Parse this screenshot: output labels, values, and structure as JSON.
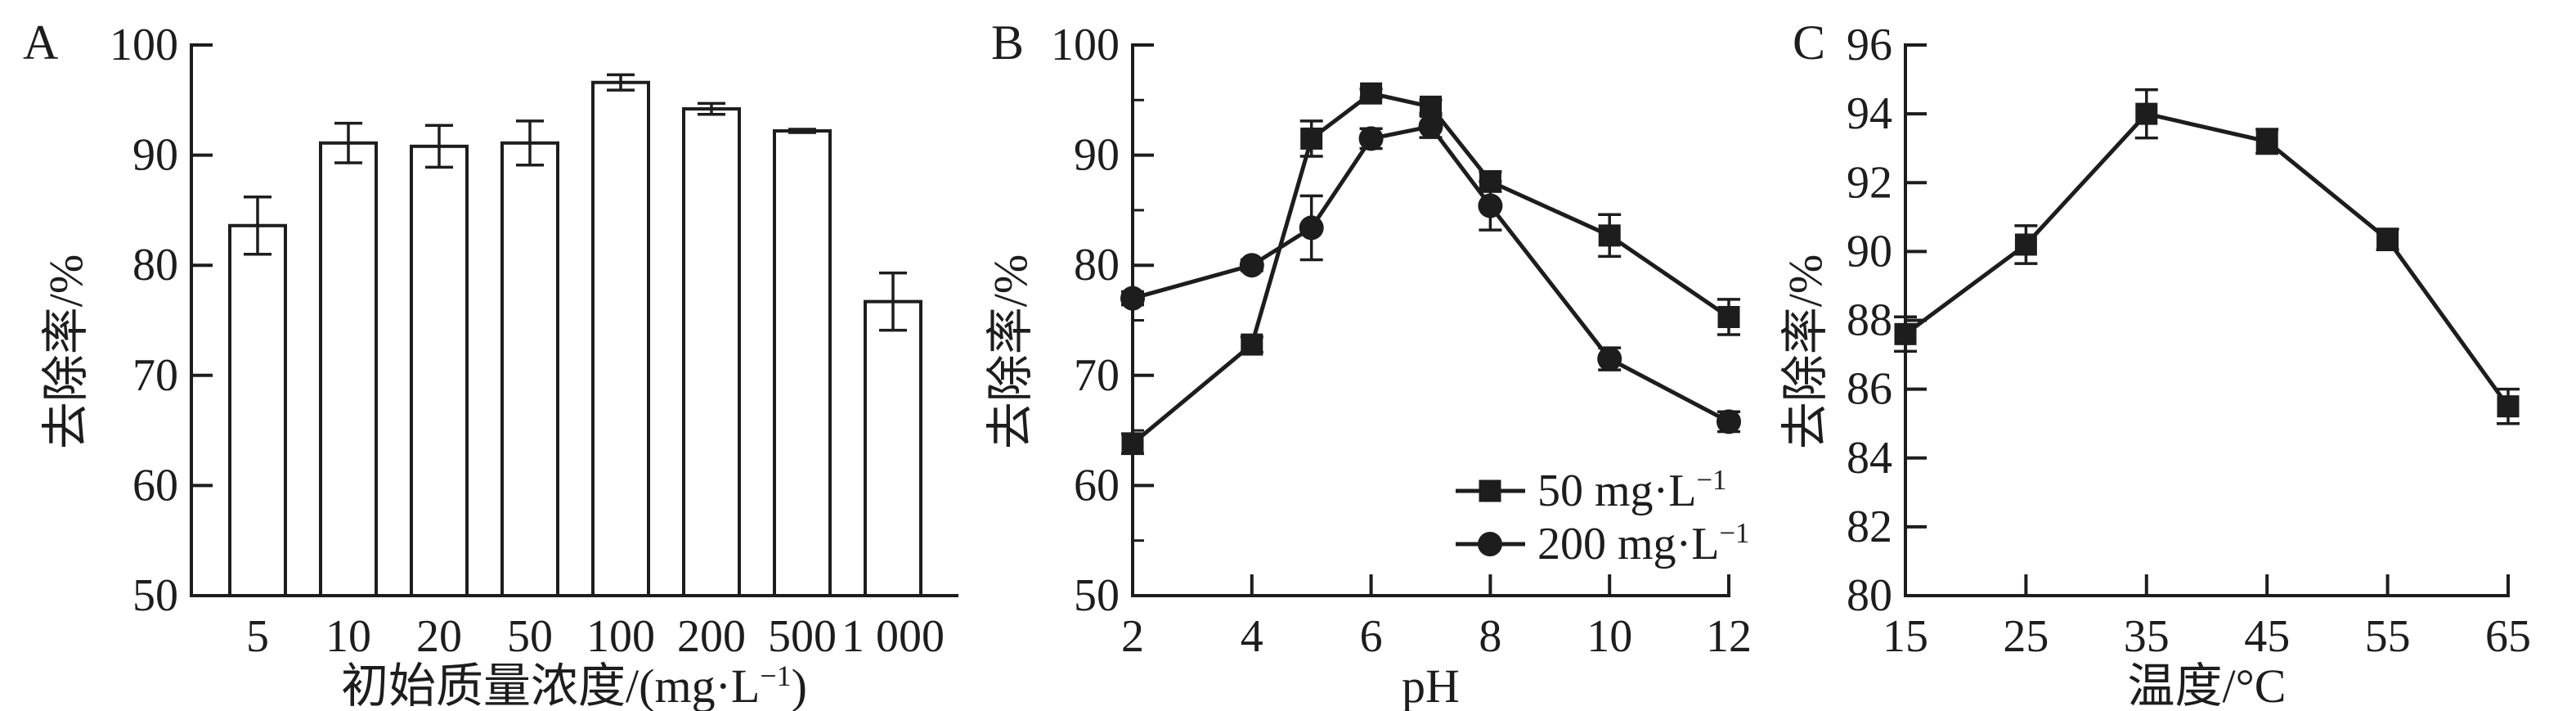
{
  "figure": {
    "background": "#ffffff",
    "ink_color": "#1d1d1d",
    "panels": [
      "A",
      "B",
      "C"
    ]
  },
  "chart_data": [
    {
      "type": "bar",
      "panel_label": "A",
      "categories": [
        "5",
        "10",
        "20",
        "50",
        "100",
        "200",
        "500",
        "1 000"
      ],
      "values": [
        83.6,
        91.1,
        90.8,
        91.1,
        96.6,
        94.2,
        92.2,
        76.7
      ],
      "errors": [
        2.6,
        1.8,
        1.9,
        2.0,
        0.7,
        0.5,
        0.15,
        2.6
      ],
      "xlabel": "初始质量浓度/(mg·L⁻¹)",
      "ylabel": "去除率/%",
      "ylim": [
        50,
        100
      ],
      "yticks": [
        50,
        60,
        70,
        80,
        90,
        100
      ],
      "bar_fill": "#ffffff",
      "grid": "off"
    },
    {
      "type": "line",
      "panel_label": "B",
      "x": [
        2,
        4,
        5,
        6,
        7,
        8,
        10,
        12
      ],
      "series": [
        {
          "name": "50 mg·L⁻¹",
          "marker": "square",
          "values": [
            63.8,
            72.8,
            91.5,
            95.6,
            94.4,
            87.6,
            82.7,
            75.3
          ],
          "errors": [
            0.9,
            0.7,
            1.6,
            0.4,
            0.6,
            0.9,
            1.9,
            1.6
          ]
        },
        {
          "name": "200 mg·L⁻¹",
          "marker": "circle",
          "values": [
            77.0,
            80.0,
            83.4,
            91.5,
            92.6,
            85.4,
            71.5,
            65.8
          ],
          "errors": [
            0.6,
            0.5,
            2.9,
            0.9,
            1.0,
            2.2,
            1.0,
            0.9
          ]
        }
      ],
      "xlabel": "pH",
      "ylabel": "去除率/%",
      "xlim": [
        2,
        12
      ],
      "xticks": [
        2,
        4,
        6,
        8,
        10,
        12
      ],
      "ylim": [
        50,
        100
      ],
      "yticks": [
        50,
        60,
        70,
        80,
        90,
        100
      ],
      "yminorticks": [
        55,
        65,
        75,
        85,
        95
      ],
      "legend_position": "bottom-right",
      "grid": "off"
    },
    {
      "type": "line",
      "panel_label": "C",
      "x": [
        15,
        25,
        35,
        45,
        55,
        65
      ],
      "series": [
        {
          "name": "",
          "marker": "square",
          "values": [
            87.6,
            90.2,
            94.0,
            93.2,
            90.35,
            85.5
          ],
          "errors": [
            0.5,
            0.55,
            0.7,
            0.35,
            0.3,
            0.5
          ]
        }
      ],
      "xlabel": "温度/℃",
      "ylabel": "去除率/%",
      "xlim": [
        15,
        65
      ],
      "xticks": [
        15,
        25,
        35,
        45,
        55,
        65
      ],
      "ylim": [
        80,
        96
      ],
      "yticks": [
        80,
        82,
        84,
        86,
        88,
        90,
        92,
        94,
        96
      ],
      "grid": "off"
    }
  ]
}
